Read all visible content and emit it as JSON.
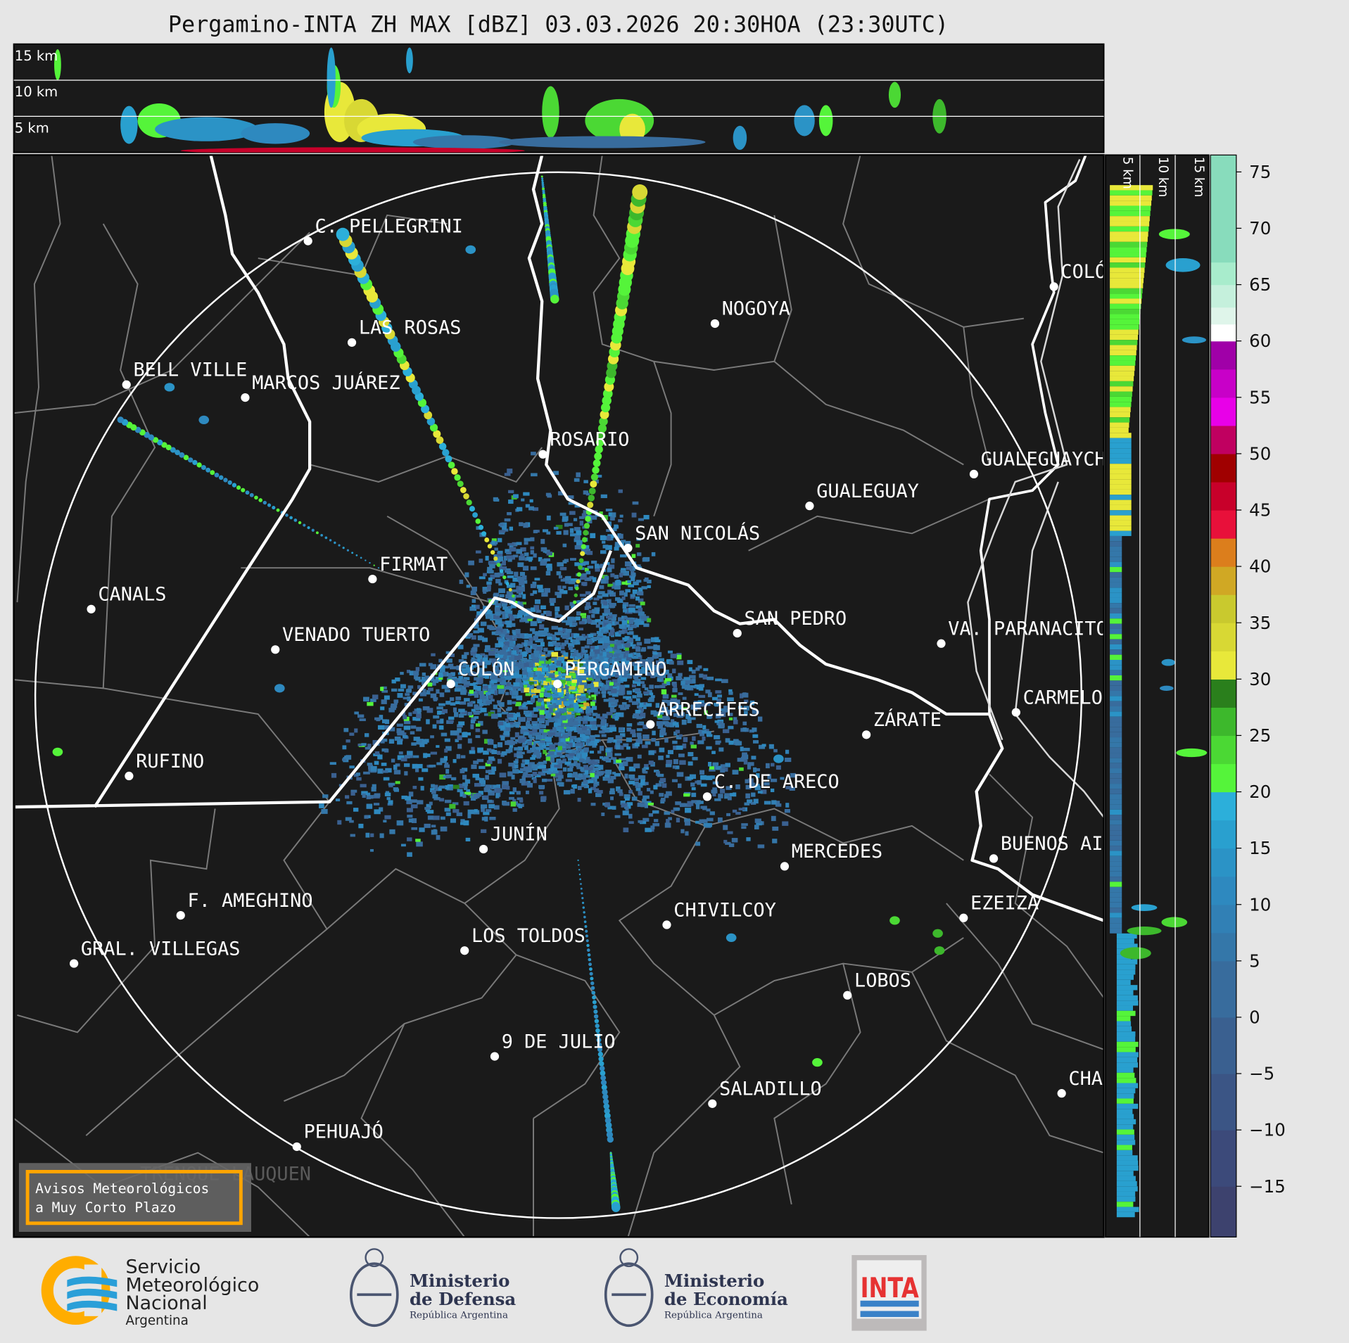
{
  "title": "Pergamino-INTA ZH MAX [dBZ] 03.03.2026 20:30HOA (23:30UTC)",
  "top_section": {
    "height_labels": [
      "15 km",
      "10 km",
      "5 km"
    ]
  },
  "right_section": {
    "height_labels": [
      "5 km",
      "10 km",
      "15 km"
    ]
  },
  "colorbar": {
    "unit": "dBZ",
    "range": [
      -19.5,
      76.5
    ],
    "ticks": [
      "75",
      "70",
      "65",
      "60",
      "55",
      "50",
      "45",
      "40",
      "35",
      "30",
      "25",
      "20",
      "15",
      "10",
      "5",
      "0",
      "−5",
      "−10",
      "−15"
    ],
    "tick_values": [
      75,
      70,
      65,
      60,
      55,
      50,
      45,
      40,
      35,
      30,
      25,
      20,
      15,
      10,
      5,
      0,
      -5,
      -10,
      -15
    ],
    "stops": [
      [
        -19.5,
        -15,
        "#3d426e"
      ],
      [
        -15,
        -10,
        "#3c4a7a"
      ],
      [
        -10,
        -5,
        "#3b5585"
      ],
      [
        -5,
        0,
        "#3a6090"
      ],
      [
        0,
        5,
        "#386c9d"
      ],
      [
        5,
        7.5,
        "#3477a9"
      ],
      [
        7.5,
        10,
        "#3180b5"
      ],
      [
        10,
        12.5,
        "#2e89bf"
      ],
      [
        12.5,
        15,
        "#2b93c6"
      ],
      [
        15,
        17.5,
        "#29a0cf"
      ],
      [
        17.5,
        20,
        "#2cafda"
      ],
      [
        20,
        22.5,
        "#55f43a"
      ],
      [
        22.5,
        25,
        "#4bd834"
      ],
      [
        25,
        27.5,
        "#3db82c"
      ],
      [
        27.5,
        30,
        "#2a7f1c"
      ],
      [
        30,
        32.5,
        "#e8e83a"
      ],
      [
        32.5,
        35,
        "#d8d834"
      ],
      [
        35,
        37.5,
        "#c9c92e"
      ],
      [
        37.5,
        40,
        "#d0a824"
      ],
      [
        40,
        42.5,
        "#dc7e1c"
      ],
      [
        42.5,
        45,
        "#e8103a"
      ],
      [
        45,
        47.5,
        "#c8002a"
      ],
      [
        47.5,
        50,
        "#a00000"
      ],
      [
        50,
        52.5,
        "#c00060"
      ],
      [
        52.5,
        55,
        "#e800e8"
      ],
      [
        55,
        57.5,
        "#c800c8"
      ],
      [
        57.5,
        60,
        "#a000a8"
      ],
      [
        60,
        61.5,
        "#ffffff"
      ],
      [
        61.5,
        63,
        "#dff5ea"
      ],
      [
        63,
        65,
        "#c5f0dc"
      ],
      [
        65,
        67,
        "#a8eccc"
      ],
      [
        67,
        76.5,
        "#88dcbc"
      ]
    ]
  },
  "map": {
    "background": "#1a1a1a",
    "cities": [
      "C. PELLEGRINI",
      "LAS ROSAS",
      "BELL VILLE",
      "MARCOS JUÁREZ",
      "ROSARIO",
      "NOGOYA",
      "GUALEGUAY",
      "GUALEGUAYCHÚ",
      "COLÓN",
      "SAN NICOLÁS",
      "FIRMAT",
      "CANALS",
      "SAN PEDRO",
      "VA. PARANACITO",
      "VENADO TUERTO",
      "COLÓN",
      "PERGAMINO",
      "CARMELO",
      "ARRECIFES",
      "ZÁRATE",
      "RUFINO",
      "C. DE ARECO",
      "JUNÍN",
      "MERCEDES",
      "BUENOS AIRES",
      "F. AMEGHINO",
      "EZEIZA",
      "CHIVILCOY",
      "GRAL. VILLEGAS",
      "LOS TOLDOS",
      "LOBOS",
      "9 DE JULIO",
      "SALADILLO",
      "CHASCOMÚS",
      "PEHUAJÓ",
      "TRENQUE LAUQUEN"
    ]
  },
  "warning_box": {
    "lines": [
      "Avisos Meteorológicos",
      "a Muy Corto Plazo"
    ],
    "accent": "#ffa500"
  },
  "logos": {
    "smn": {
      "lines": [
        "Servicio",
        "Meteorológico",
        "Nacional",
        "Argentina"
      ],
      "colors": [
        "#ffad00",
        "#2a9fd8"
      ]
    },
    "defensa": {
      "lines": [
        "Ministerio",
        "de Defensa",
        "República Argentina"
      ]
    },
    "economia": {
      "lines": [
        "Ministerio",
        "de Economía",
        "República Argentina"
      ]
    },
    "inta": {
      "text": "INTA",
      "colors": [
        "#e63232",
        "#3a82c8"
      ]
    }
  }
}
